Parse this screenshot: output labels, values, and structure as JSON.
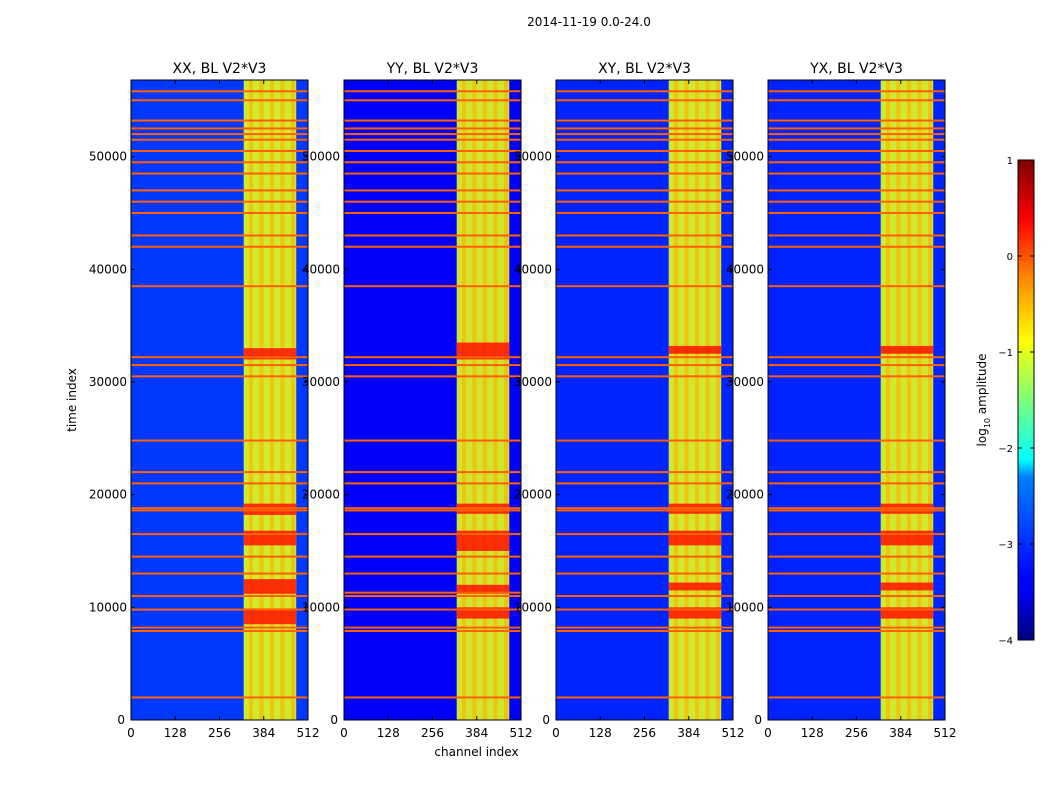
{
  "figure_title": "2014-11-19 0.0-24.0",
  "colorbar": {
    "label": "log10 amplitude",
    "label_base": "log",
    "label_sub": "10",
    "label_rest": " amplitude",
    "range": [
      -4,
      1
    ],
    "ticks": [
      1,
      0,
      -1,
      -2,
      -3,
      -4
    ],
    "tick_labels": [
      "1",
      "0",
      "−1",
      "−2",
      "−3",
      "−4"
    ],
    "colormap": "jet"
  },
  "chart_data": [
    {
      "type": "heatmap",
      "title": "XX, BL V2*V3",
      "xlabel": "",
      "ylabel": "time index",
      "x_ticks": [
        0,
        128,
        256,
        384,
        512
      ],
      "y_ticks": [
        0,
        10000,
        20000,
        30000,
        40000,
        50000
      ],
      "xlim": [
        0,
        512
      ],
      "ylim": [
        0,
        56800
      ],
      "background_log10": -3.1,
      "vertical_band": {
        "channels": [
          326,
          478
        ],
        "log10": -1.0
      },
      "red_blocks_time_ranges": [
        [
          8500,
          9900
        ],
        [
          11200,
          12500
        ],
        [
          15500,
          16800
        ],
        [
          18200,
          19200
        ],
        [
          32000,
          33000
        ]
      ],
      "horizontal_flagged_rows": [
        2000,
        7900,
        8200,
        9800,
        11000,
        13000,
        14500,
        16500,
        18600,
        18800,
        21000,
        22000,
        24800,
        30500,
        31500,
        32200,
        38500,
        42000,
        43000,
        45000,
        46000,
        47000,
        48500,
        49500,
        50500,
        51500,
        52000,
        52500,
        53200,
        55000,
        55800
      ]
    },
    {
      "type": "heatmap",
      "title": "YY, BL V2*V3",
      "xlabel": "channel index",
      "ylabel": "",
      "x_ticks": [
        0,
        128,
        256,
        384,
        512
      ],
      "y_ticks": [
        0,
        10000,
        20000,
        30000,
        40000,
        50000
      ],
      "xlim": [
        0,
        512
      ],
      "ylim": [
        0,
        56800
      ],
      "background_log10": -3.4,
      "vertical_band": {
        "channels": [
          326,
          478
        ],
        "log10": -1.0
      },
      "red_blocks_time_ranges": [
        [
          9000,
          10000
        ],
        [
          11200,
          12000
        ],
        [
          15000,
          16800
        ],
        [
          18300,
          19200
        ],
        [
          32000,
          33500
        ]
      ],
      "horizontal_flagged_rows": [
        2000,
        7900,
        8200,
        9800,
        11000,
        11300,
        13000,
        14500,
        16500,
        18600,
        18800,
        21000,
        22000,
        24800,
        30500,
        31500,
        32200,
        38500,
        42000,
        43000,
        45000,
        46000,
        47000,
        48500,
        49500,
        50500,
        51500,
        52000,
        52500,
        53200,
        55000,
        55800
      ]
    },
    {
      "type": "heatmap",
      "title": "XY, BL V2*V3",
      "xlabel": "",
      "ylabel": "",
      "x_ticks": [
        0,
        128,
        256,
        384,
        512
      ],
      "y_ticks": [
        0,
        10000,
        20000,
        30000,
        40000,
        50000
      ],
      "xlim": [
        0,
        512
      ],
      "ylim": [
        0,
        56800
      ],
      "background_log10": -3.2,
      "vertical_band": {
        "channels": [
          326,
          478
        ],
        "log10": -1.0
      },
      "red_blocks_time_ranges": [
        [
          9000,
          10000
        ],
        [
          11500,
          12200
        ],
        [
          15500,
          16800
        ],
        [
          18300,
          19200
        ],
        [
          32500,
          33200
        ]
      ],
      "horizontal_flagged_rows": [
        2000,
        7900,
        8200,
        9800,
        11000,
        13000,
        14500,
        16500,
        18600,
        18800,
        21000,
        22000,
        24800,
        30500,
        31500,
        32200,
        38500,
        42000,
        43000,
        45000,
        46000,
        47000,
        48500,
        49500,
        50500,
        51500,
        52000,
        52500,
        53200,
        55000,
        55800
      ]
    },
    {
      "type": "heatmap",
      "title": "YX, BL V2*V3",
      "xlabel": "",
      "ylabel": "",
      "x_ticks": [
        0,
        128,
        256,
        384,
        512
      ],
      "y_ticks": [
        0,
        10000,
        20000,
        30000,
        40000,
        50000
      ],
      "xlim": [
        0,
        512
      ],
      "ylim": [
        0,
        56800
      ],
      "background_log10": -3.2,
      "vertical_band": {
        "channels": [
          326,
          478
        ],
        "log10": -1.0
      },
      "red_blocks_time_ranges": [
        [
          9000,
          10000
        ],
        [
          11500,
          12200
        ],
        [
          15500,
          16800
        ],
        [
          18300,
          19200
        ],
        [
          32500,
          33200
        ]
      ],
      "horizontal_flagged_rows": [
        2000,
        7900,
        8200,
        9800,
        11000,
        13000,
        14500,
        16500,
        18600,
        18800,
        21000,
        22000,
        24800,
        30500,
        31500,
        32200,
        38500,
        42000,
        43000,
        45000,
        46000,
        47000,
        48500,
        49500,
        50500,
        51500,
        52000,
        52500,
        53200,
        55000,
        55800
      ]
    }
  ]
}
